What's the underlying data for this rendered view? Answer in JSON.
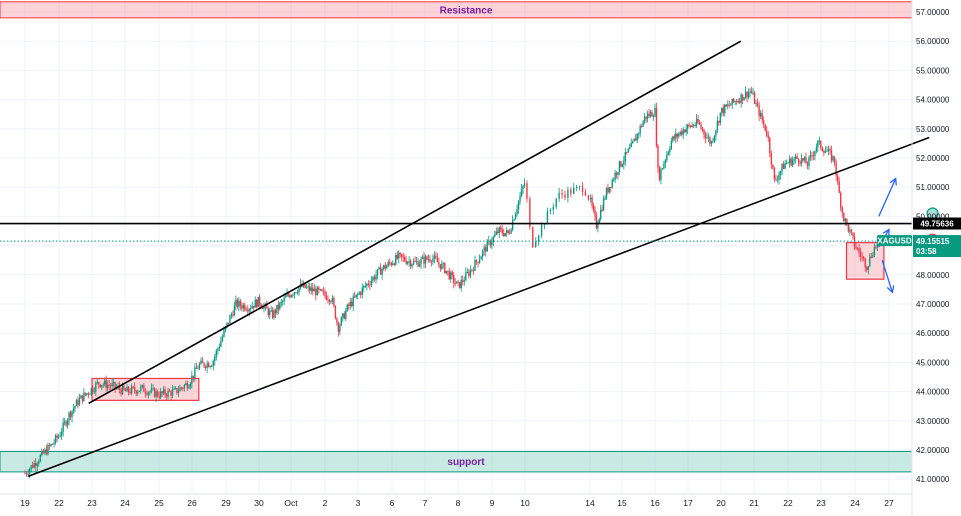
{
  "chart_data": {
    "type": "candlestick",
    "symbol": "XAGUSD",
    "price_axis": {
      "ylim": [
        40.8,
        57.25
      ],
      "tick_labels": [
        "57.00000",
        "56.00000",
        "55.00000",
        "54.00000",
        "53.00000",
        "52.00000",
        "51.00000",
        "50.00000",
        "49.00000",
        "48.00000",
        "47.00000",
        "46.00000",
        "45.00000",
        "44.00000",
        "43.00000",
        "42.00000",
        "41.00000"
      ],
      "tick_values": [
        57,
        56,
        55,
        54,
        53,
        52,
        51,
        50,
        49,
        48,
        47,
        46,
        45,
        44,
        43,
        42,
        41
      ]
    },
    "time_axis": {
      "labels": [
        "19",
        "22",
        "23",
        "24",
        "25",
        "26",
        "29",
        "30",
        "Oct",
        "2",
        "3",
        "6",
        "7",
        "8",
        "9",
        "10",
        "14",
        "15",
        "16",
        "17",
        "20",
        "21",
        "22",
        "23",
        "24",
        "27"
      ],
      "index": [
        0,
        1,
        2,
        3,
        4,
        5,
        6,
        7,
        8,
        9,
        10,
        11,
        12,
        13,
        14,
        15,
        16,
        17,
        18,
        19,
        20,
        21,
        22,
        23,
        24,
        25
      ]
    },
    "price_path": [
      [
        0.0,
        41.2
      ],
      [
        0.4,
        41.7
      ],
      [
        0.8,
        42.2
      ],
      [
        1.0,
        42.5
      ],
      [
        1.3,
        43.2
      ],
      [
        1.6,
        43.7
      ],
      [
        1.9,
        44.0
      ],
      [
        2.2,
        44.3
      ],
      [
        2.6,
        44.2
      ],
      [
        3.0,
        44.0
      ],
      [
        3.5,
        44.1
      ],
      [
        4.0,
        43.9
      ],
      [
        4.5,
        44.0
      ],
      [
        4.9,
        44.3
      ],
      [
        5.2,
        44.9
      ],
      [
        5.6,
        45.0
      ],
      [
        6.0,
        46.2
      ],
      [
        6.3,
        47.0
      ],
      [
        6.7,
        46.9
      ],
      [
        7.0,
        47.1
      ],
      [
        7.4,
        46.6
      ],
      [
        7.9,
        47.3
      ],
      [
        8.3,
        47.6
      ],
      [
        8.8,
        47.4
      ],
      [
        9.2,
        47.2
      ],
      [
        9.4,
        46.2
      ],
      [
        9.7,
        46.9
      ],
      [
        10.2,
        47.6
      ],
      [
        10.7,
        48.2
      ],
      [
        11.2,
        48.6
      ],
      [
        11.7,
        48.4
      ],
      [
        12.2,
        48.6
      ],
      [
        12.6,
        48.2
      ],
      [
        13.0,
        47.6
      ],
      [
        13.4,
        48.2
      ],
      [
        13.8,
        48.9
      ],
      [
        14.2,
        49.5
      ],
      [
        14.5,
        49.4
      ],
      [
        14.8,
        50.5
      ],
      [
        15.0,
        51.2
      ],
      [
        15.1,
        49.0
      ],
      [
        15.5,
        50.7
      ],
      [
        15.9,
        51.0
      ],
      [
        16.2,
        49.7
      ],
      [
        16.5,
        50.8
      ],
      [
        16.9,
        51.7
      ],
      [
        17.3,
        52.4
      ],
      [
        17.7,
        53.4
      ],
      [
        18.0,
        53.6
      ],
      [
        18.1,
        51.3
      ],
      [
        18.5,
        52.6
      ],
      [
        18.9,
        53.0
      ],
      [
        19.3,
        53.2
      ],
      [
        19.7,
        52.5
      ],
      [
        20.0,
        53.6
      ],
      [
        20.5,
        54.0
      ],
      [
        20.9,
        54.3
      ],
      [
        21.1,
        53.7
      ],
      [
        21.4,
        52.8
      ],
      [
        21.6,
        51.2
      ],
      [
        21.9,
        51.8
      ],
      [
        22.3,
        52.0
      ],
      [
        22.6,
        51.8
      ],
      [
        22.9,
        52.5
      ],
      [
        23.2,
        52.2
      ],
      [
        23.4,
        51.9
      ],
      [
        23.5,
        51.0
      ],
      [
        23.65,
        50.0
      ],
      [
        23.8,
        49.6
      ],
      [
        24.0,
        49.0
      ],
      [
        24.2,
        48.6
      ],
      [
        24.35,
        48.3
      ],
      [
        24.55,
        48.9
      ],
      [
        24.75,
        49.16
      ]
    ],
    "trendlines": [
      {
        "name": "channel-upper",
        "from": [
          1.9,
          43.6
        ],
        "to": [
          20.6,
          56.0
        ]
      },
      {
        "name": "channel-lower",
        "from": [
          0.1,
          41.1
        ],
        "to": [
          26.2,
          52.7
        ]
      }
    ],
    "horizontal_level": {
      "value": 49.75636,
      "label": "49.75636"
    },
    "last_price": {
      "value": 49.15515,
      "label": "49.15515",
      "countdown": "03:58",
      "symbol": "XAGUSD"
    },
    "zones": [
      {
        "label": "Resistance",
        "y": [
          56.8,
          57.35
        ],
        "color": "#f23645"
      },
      {
        "label": "support",
        "y": [
          41.25,
          41.95
        ],
        "color": "#089981"
      }
    ],
    "boxes": [
      {
        "name": "consolidation-box",
        "x": [
          2.0,
          5.2
        ],
        "y": [
          43.7,
          44.45
        ],
        "color": "#f23645"
      },
      {
        "name": "current-box",
        "x": [
          23.75,
          24.85
        ],
        "y": [
          47.85,
          49.1
        ],
        "color": "#f23645"
      }
    ],
    "scenario_arrows": [
      {
        "name": "up-arrow-1",
        "from": [
          24.7,
          48.95
        ],
        "to": [
          25.0,
          49.55
        ]
      },
      {
        "name": "up-arrow-2",
        "from": [
          24.7,
          50.0
        ],
        "to": [
          25.2,
          51.3
        ]
      },
      {
        "name": "down-arrow",
        "from": [
          24.8,
          48.5
        ],
        "to": [
          25.1,
          47.4
        ]
      }
    ],
    "markers": [
      {
        "name": "green-circle",
        "x": 26.3,
        "y": 50.1,
        "color": "#089981"
      },
      {
        "name": "red-circle",
        "x": 26.3,
        "y": 49.2,
        "color": "#f23645"
      }
    ],
    "grid": true,
    "colors": {
      "up": "#089981",
      "down": "#f23645",
      "line": "#000000",
      "arrow": "#2962ff",
      "zone_text": "#7b1fa2"
    }
  }
}
